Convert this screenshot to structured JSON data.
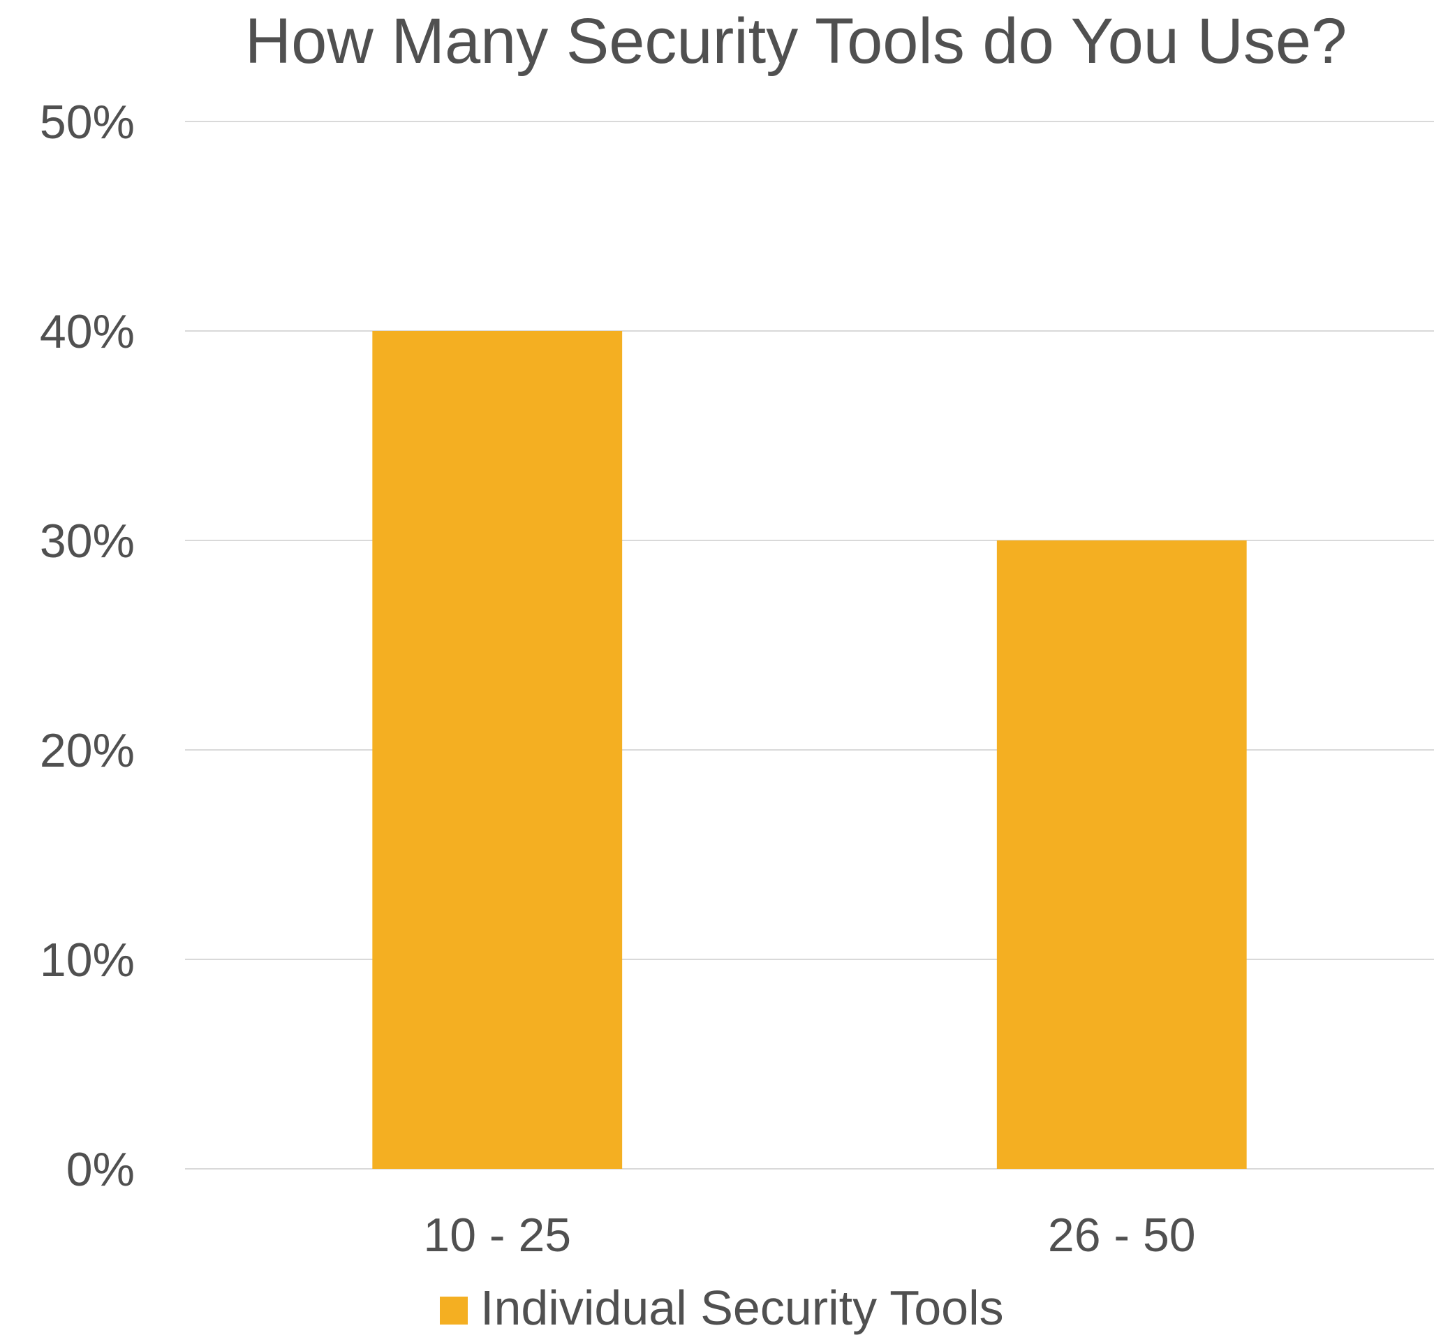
{
  "chart_data": {
    "type": "bar",
    "title": "How Many Security Tools do You Use?",
    "categories": [
      "10 - 25",
      "26 - 50"
    ],
    "series": [
      {
        "name": "Individual Security Tools",
        "values": [
          40,
          30
        ],
        "color": "#F4AF22"
      }
    ],
    "ylim": [
      0,
      50
    ],
    "yticks": [
      0,
      10,
      20,
      30,
      40,
      50
    ],
    "ytick_labels": [
      "0%",
      "10%",
      "20%",
      "30%",
      "40%",
      "50%"
    ],
    "xlabel": "",
    "ylabel": "",
    "grid": true,
    "legend_position": "bottom-center",
    "colors": {
      "text": "#505050",
      "grid": "#D9D9D9",
      "bar": "#F4AF22"
    }
  }
}
